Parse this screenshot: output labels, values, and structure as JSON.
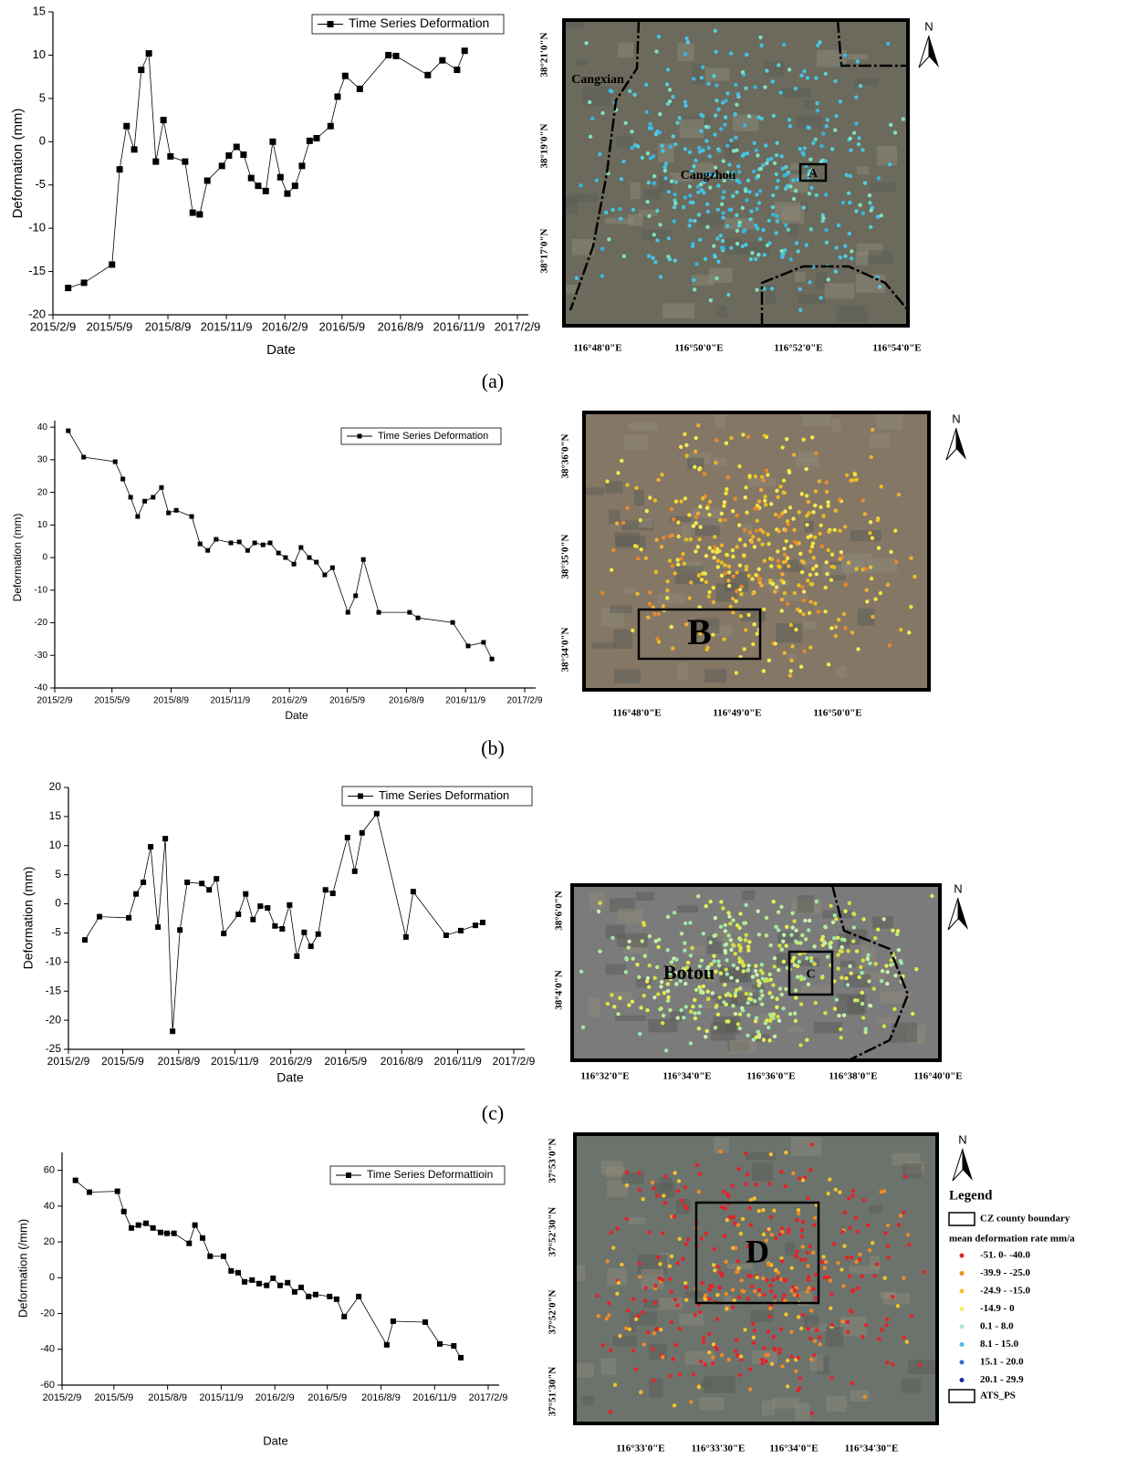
{
  "chart_data": [
    {
      "type": "line",
      "xlabel": "Date",
      "ylabel": "Deformation (mm)",
      "x": [
        "2015/3/5",
        "2015/3/30",
        "2015/5/13",
        "2015/5/25",
        "2015/6/5",
        "2015/6/17",
        "2015/6/28",
        "2015/7/10",
        "2015/7/21",
        "2015/8/2",
        "2015/8/13",
        "2015/9/5",
        "2015/9/17",
        "2015/9/28",
        "2015/10/10",
        "2015/11/2",
        "2015/11/13",
        "2015/11/25",
        "2015/12/6",
        "2015/12/18",
        "2015/12/29",
        "2016/1/10",
        "2016/1/21",
        "2016/2/2",
        "2016/2/13",
        "2016/2/25",
        "2016/3/7",
        "2016/3/19",
        "2016/3/30",
        "2016/4/21",
        "2016/5/2",
        "2016/5/14",
        "2016/6/6",
        "2016/7/21",
        "2016/8/2",
        "2016/9/21",
        "2016/10/14",
        "2016/11/6",
        "2016/11/18"
      ],
      "series": [
        {
          "name": "Time Series Deformation",
          "color": "#000000",
          "values": [
            -16.9,
            -16.3,
            -14.2,
            -3.2,
            1.8,
            -0.9,
            8.3,
            10.2,
            -2.3,
            2.5,
            -1.7,
            -2.3,
            -8.2,
            -8.4,
            -4.5,
            -2.8,
            -1.6,
            -0.6,
            -1.5,
            -4.2,
            -5.1,
            -5.7,
            0,
            -4.1,
            -6.0,
            -5.1,
            -2.8,
            0.1,
            0.4,
            1.8,
            5.2,
            7.6,
            6.1,
            10.0,
            9.9,
            7.7,
            9.4,
            8.3,
            10.5
          ]
        }
      ],
      "xlim": [
        "2015/2/9",
        "2017/2/9"
      ],
      "xticks": [
        "2015/2/9",
        "2015/5/9",
        "2015/8/9",
        "2015/11/9",
        "2016/2/9",
        "2016/5/9",
        "2016/8/9",
        "2016/11/9",
        "2017/2/9"
      ],
      "ylim": [
        -20,
        15
      ],
      "yticks": [
        -20,
        -15,
        -10,
        -5,
        0,
        5,
        10,
        15
      ],
      "legend": "top right"
    },
    {
      "type": "line",
      "xlabel": "Date",
      "ylabel": "Deformation (mm)",
      "x": [
        "2015/3/2",
        "2015/3/26",
        "2015/5/14",
        "2015/5/26",
        "2015/6/7",
        "2015/6/18",
        "2015/6/29",
        "2015/7/12",
        "2015/7/25",
        "2015/8/5",
        "2015/8/17",
        "2015/9/10",
        "2015/9/23",
        "2015/10/5",
        "2015/10/18",
        "2015/11/10",
        "2015/11/23",
        "2015/12/6",
        "2015/12/17",
        "2015/12/30",
        "2016/1/10",
        "2016/1/23",
        "2016/2/3",
        "2016/2/16",
        "2016/2/27",
        "2016/3/11",
        "2016/3/22",
        "2016/4/4",
        "2016/4/16",
        "2016/5/10",
        "2016/5/22",
        "2016/6/3",
        "2016/6/27",
        "2016/8/14",
        "2016/8/27",
        "2016/10/20",
        "2016/11/13",
        "2016/12/7",
        "2016/12/20"
      ],
      "series": [
        {
          "name": "Time Series Deformation",
          "color": "#000000",
          "values": [
            38.9,
            30.8,
            29.4,
            24.1,
            18.5,
            12.6,
            17.3,
            18.5,
            21.5,
            13.7,
            14.5,
            12.6,
            4.2,
            2.2,
            5.6,
            4.5,
            4.8,
            2.2,
            4.5,
            3.9,
            4.5,
            1.4,
            0,
            -2.0,
            3.1,
            0,
            -1.4,
            -5.3,
            -3.1,
            -16.8,
            -11.7,
            -0.6,
            -16.8,
            -16.8,
            -18.5,
            -19.9,
            -27.1,
            -26.0,
            -31.1
          ]
        }
      ],
      "xlim": [
        "2015/2/9",
        "2017/2/9"
      ],
      "xticks": [
        "2015/2/9",
        "2015/5/9",
        "2015/8/9",
        "2015/11/9",
        "2016/2/9",
        "2016/5/9",
        "2016/8/9",
        "2016/11/9",
        "2017/2/9"
      ],
      "ylim": [
        -40,
        42
      ],
      "yticks": [
        -40,
        -30,
        -20,
        -10,
        0,
        10,
        20,
        30,
        40
      ],
      "legend": "top right"
    },
    {
      "type": "line",
      "xlabel": "Date",
      "ylabel": "Deformation (mm)",
      "x": [
        "2015/3/8",
        "2015/4/1",
        "2015/5/19",
        "2015/5/31",
        "2015/6/12",
        "2015/6/24",
        "2015/7/6",
        "2015/7/18",
        "2015/7/30",
        "2015/8/11",
        "2015/8/23",
        "2015/9/16",
        "2015/9/28",
        "2015/10/10",
        "2015/10/22",
        "2015/11/15",
        "2015/11/27",
        "2015/12/9",
        "2015/12/21",
        "2016/1/2",
        "2016/1/14",
        "2016/1/26",
        "2016/2/7",
        "2016/2/19",
        "2016/3/2",
        "2016/3/13",
        "2016/3/25",
        "2016/4/6",
        "2016/4/18",
        "2016/5/12",
        "2016/5/24",
        "2016/6/5",
        "2016/6/29",
        "2016/8/16",
        "2016/8/28",
        "2016/10/21",
        "2016/11/14",
        "2016/12/8",
        "2016/12/20"
      ],
      "series": [
        {
          "name": "Time Series Deformation",
          "color": "#000000",
          "values": [
            -6.2,
            -2.2,
            -2.4,
            1.7,
            3.7,
            9.8,
            -4.0,
            11.2,
            -21.9,
            -4.5,
            3.7,
            3.5,
            2.4,
            4.3,
            -5.1,
            -1.8,
            1.7,
            -2.7,
            -0.4,
            -0.7,
            -3.8,
            -4.3,
            -0.2,
            -9.0,
            -4.9,
            -7.3,
            -5.2,
            2.4,
            1.8,
            11.4,
            5.6,
            12.2,
            15.5,
            -5.7,
            2.1,
            -5.4,
            -4.6,
            -3.7,
            -3.2
          ]
        }
      ],
      "xlim": [
        "2015/2/9",
        "2017/2/9"
      ],
      "xticks": [
        "2015/2/9",
        "2015/5/9",
        "2015/8/9",
        "2015/11/9",
        "2016/2/9",
        "2016/5/9",
        "2016/8/9",
        "2016/11/9",
        "2017/2/9"
      ],
      "ylim": [
        -25,
        20
      ],
      "yticks": [
        -25,
        -20,
        -15,
        -10,
        -5,
        0,
        5,
        10,
        15,
        20
      ],
      "legend": "top right"
    },
    {
      "type": "line",
      "xlabel": "Date",
      "ylabel": "Deformation (/mm)",
      "x": [
        "2015/3/4",
        "2015/3/28",
        "2015/5/15",
        "2015/5/26",
        "2015/6/8",
        "2015/6/20",
        "2015/7/3",
        "2015/7/15",
        "2015/7/28",
        "2015/8/8",
        "2015/8/20",
        "2015/9/15",
        "2015/9/25",
        "2015/10/8",
        "2015/10/21",
        "2015/11/13",
        "2015/11/26",
        "2015/12/8",
        "2015/12/19",
        "2016/1/1",
        "2016/1/13",
        "2016/1/26",
        "2016/2/6",
        "2016/2/18",
        "2016/3/2",
        "2016/3/14",
        "2016/3/25",
        "2016/4/7",
        "2016/4/19",
        "2016/5/13",
        "2016/5/25",
        "2016/6/7",
        "2016/7/2",
        "2016/8/19",
        "2016/8/30",
        "2016/10/24",
        "2016/11/18",
        "2016/12/12",
        "2016/12/24"
      ],
      "series": [
        {
          "name": "Time Series Deformattioin",
          "color": "#000000",
          "values": [
            54.4,
            47.8,
            48.3,
            37.0,
            27.8,
            29.4,
            30.4,
            27.8,
            25.3,
            24.8,
            24.8,
            19.2,
            29.4,
            22.2,
            12.0,
            12.0,
            3.8,
            2.8,
            -2.3,
            -1.3,
            -3.3,
            -4.3,
            -0.3,
            -4.3,
            -2.8,
            -7.9,
            -5.4,
            -10.5,
            -9.4,
            -10.5,
            -12.0,
            -21.7,
            -10.5,
            -37.5,
            -24.3,
            -24.8,
            -37.0,
            -38.1,
            -44.7
          ]
        }
      ],
      "xlim": [
        "2015/2/9",
        "2017/2/9"
      ],
      "xticks": [
        "2015/2/9",
        "2015/5/9",
        "2015/8/9",
        "2015/11/9",
        "2016/2/9",
        "2016/5/9",
        "2016/8/9",
        "2016/11/9",
        "2017/2/9"
      ],
      "ylim": [
        -60,
        70
      ],
      "yticks": [
        -60,
        -40,
        -20,
        0,
        20,
        40,
        60
      ],
      "legend": "top right"
    }
  ],
  "maps": [
    {
      "north": "N",
      "lat_labels": [
        "38°21'0\"N",
        "38°19'0\"N",
        "38°17'0\"N"
      ],
      "lon_labels": [
        "116°48'0\"E",
        "116°50'0\"E",
        "116°52'0\"E",
        "116°54'0\"E"
      ],
      "places": [
        "Cangxian",
        "Cangzhou"
      ],
      "box_label": "A"
    },
    {
      "north": "N",
      "lat_labels": [
        "38°36'0\"N",
        "38°35'0\"N",
        "38°34'0\"N"
      ],
      "lon_labels": [
        "116°48'0\"E",
        "116°49'0\"E",
        "116°50'0\"E"
      ],
      "places": [],
      "box_label": "B"
    },
    {
      "north": "N",
      "lat_labels": [
        "38°6'0\"N",
        "38°4'0\"N"
      ],
      "lon_labels": [
        "116°32'0\"E",
        "116°34'0\"E",
        "116°36'0\"E",
        "116°38'0\"E",
        "116°40'0\"E"
      ],
      "places": [
        "Botou"
      ],
      "box_label": "C"
    },
    {
      "north": "N",
      "lat_labels": [
        "37°53'0\"N",
        "37°52'30\"N",
        "37°52'0\"N",
        "37°51'30\"N"
      ],
      "lon_labels": [
        "116°33'0\"E",
        "116°33'30\"E",
        "116°34'0\"E",
        "116°34'30\"E"
      ],
      "places": [],
      "box_label": "D",
      "legend": {
        "title": "Legend",
        "boundary": "CZ county boundary",
        "subtitle": "mean deformation rate mm/a",
        "classes": [
          {
            "label": "-51. 0- -40.0",
            "color": "#e3232b"
          },
          {
            "label": "-39.9 - -25.0",
            "color": "#f08a24"
          },
          {
            "label": "-24.9 - -15.0",
            "color": "#f3c12b"
          },
          {
            "label": "-14.9 - 0",
            "color": "#f2ee6a"
          },
          {
            "label": "0.1 - 8.0",
            "color": "#a6eec0"
          },
          {
            "label": "8.1 - 15.0",
            "color": "#49bde6"
          },
          {
            "label": "15.1 - 20.0",
            "color": "#2f6fd0"
          },
          {
            "label": "20.1 - 29.9",
            "color": "#1d2a9c"
          }
        ],
        "points": "ATS_PS"
      }
    }
  ],
  "captions": [
    "(a)",
    "(b)",
    "(c)"
  ]
}
